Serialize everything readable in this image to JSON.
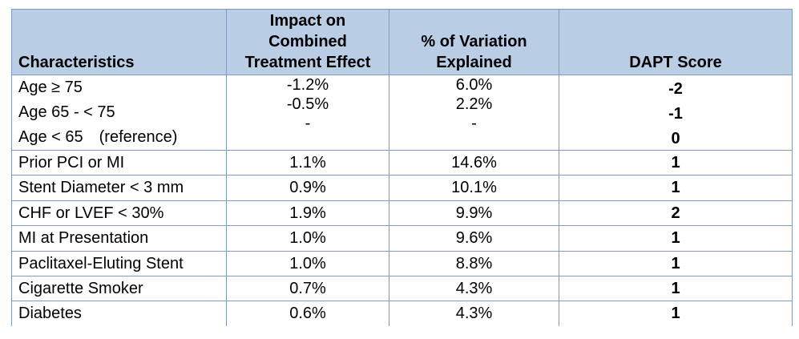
{
  "headers": {
    "characteristics": "Characteristics",
    "impact": [
      "Impact on",
      "Combined",
      "Treatment Effect"
    ],
    "variation": [
      "% of Variation",
      "Explained"
    ],
    "score": "DAPT Score"
  },
  "age_group": {
    "rows": [
      {
        "label": "Age  ≥ 75",
        "impact": "-1.2%",
        "variation": "6.0%",
        "score": "-2"
      },
      {
        "label": "Age 65 - < 75",
        "impact": "-0.5%",
        "variation": "2.2%",
        "score": "-1"
      },
      {
        "label": "Age < 65",
        "note": "(reference)",
        "impact": "-",
        "variation": "-",
        "score": "0"
      }
    ]
  },
  "rows": [
    {
      "label": "Prior PCI or MI",
      "impact": "1.1%",
      "variation": "14.6%",
      "score": "1"
    },
    {
      "label": "Stent Diameter < 3 mm",
      "impact": "0.9%",
      "variation": "10.1%",
      "score": "1"
    },
    {
      "label": "CHF or LVEF < 30%",
      "impact": "1.9%",
      "variation": "9.9%",
      "score": "2"
    },
    {
      "label": "MI at Presentation",
      "impact": "1.0%",
      "variation": "9.6%",
      "score": "1"
    },
    {
      "label": "Paclitaxel-Eluting Stent",
      "impact": "1.0%",
      "variation": "8.8%",
      "score": "1"
    },
    {
      "label": "Cigarette Smoker",
      "impact": "0.7%",
      "variation": "4.3%",
      "score": "1"
    },
    {
      "label": "Diabetes",
      "impact": "0.6%",
      "variation": "4.3%",
      "score": "1"
    }
  ]
}
